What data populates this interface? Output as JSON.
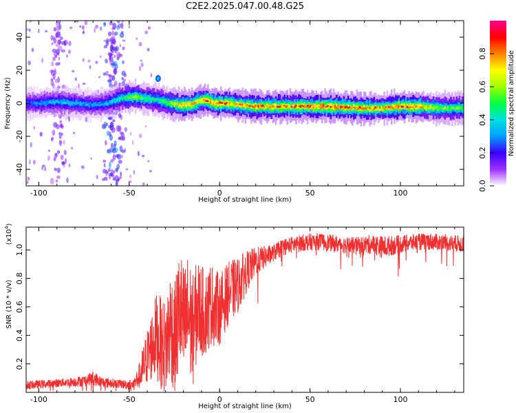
{
  "figure": {
    "title": "C2E2.2025.047.00.48.G25"
  },
  "chart_data": [
    {
      "type": "heatmap",
      "xlabel": "Height of straight line (km)",
      "ylabel": "Frequency (Hz)",
      "xlim": [
        -107,
        135
      ],
      "ylim": [
        -50,
        50
      ],
      "xticks": [
        -100,
        -50,
        0,
        50,
        100
      ],
      "yticks": [
        -40,
        -20,
        0,
        20,
        40
      ],
      "colorbar": {
        "label": "Normalized spectral amplitude",
        "range": [
          0.0,
          1.0
        ],
        "ticks": [
          0.0,
          0.2,
          0.4,
          0.6,
          0.8
        ],
        "colormap": [
          "#ffffff",
          "#9b30ff",
          "#3a00ff",
          "#00a0ff",
          "#00e0e0",
          "#00ff40",
          "#a0ff00",
          "#ffff00",
          "#ff8000",
          "#ff0000",
          "#ff0090"
        ]
      },
      "ridge": {
        "x": [
          -107,
          -100,
          -90,
          -80,
          -70,
          -62,
          -55,
          -48,
          -42,
          -35,
          -28,
          -22,
          -16,
          -12,
          -8,
          -4,
          0,
          4,
          10,
          20,
          40,
          60,
          80,
          90,
          100,
          110,
          120,
          135
        ],
        "y": [
          0,
          0,
          1,
          0,
          -1,
          0,
          3,
          4,
          3,
          2,
          0,
          -1,
          -1,
          1,
          2,
          0,
          0,
          0,
          -1,
          -2,
          -2,
          -2,
          -3,
          -3,
          -2,
          -2,
          -3,
          -3
        ],
        "amp": [
          0.25,
          0.3,
          0.35,
          0.35,
          0.3,
          0.35,
          0.45,
          0.6,
          0.5,
          0.45,
          0.6,
          0.75,
          0.8,
          0.7,
          0.85,
          0.8,
          0.85,
          0.8,
          0.75,
          0.8,
          0.8,
          0.85,
          0.8,
          0.75,
          0.85,
          0.8,
          0.6,
          0.55
        ]
      },
      "scatter_bands": [
        {
          "x": -89,
          "amp": 0.15
        },
        {
          "x": -60,
          "amp": 0.25
        },
        {
          "x": -57,
          "amp": 0.2
        }
      ]
    },
    {
      "type": "line",
      "xlabel": "Height of straight line (km)",
      "ylabel": "SNR (10 * v/v)",
      "y_multiplier": "(x10",
      "y_multiplier_exp": "4",
      "y_multiplier_close": ")",
      "xlim": [
        -107,
        135
      ],
      "ylim": [
        0.0,
        1.16
      ],
      "xticks": [
        -100,
        -50,
        0,
        50,
        100
      ],
      "yticks": [
        0.2,
        0.4,
        0.6,
        0.8,
        1.0
      ],
      "series": [
        {
          "color": "#f03030",
          "x": [
            -107,
            -95,
            -85,
            -75,
            -70,
            -65,
            -55,
            -48,
            -45,
            -40,
            -35,
            -30,
            -27,
            -25,
            -22,
            -20,
            -17,
            -15,
            -12,
            -8,
            -5,
            0,
            5,
            10,
            15,
            20,
            25,
            30,
            35,
            45,
            55,
            65,
            75,
            85,
            90,
            95,
            105,
            115,
            125,
            135
          ],
          "y": [
            0.05,
            0.06,
            0.07,
            0.08,
            0.1,
            0.07,
            0.06,
            0.05,
            0.1,
            0.25,
            0.4,
            0.3,
            0.5,
            0.35,
            0.6,
            0.45,
            0.55,
            0.42,
            0.6,
            0.55,
            0.62,
            0.58,
            0.7,
            0.75,
            0.85,
            0.92,
            0.95,
            0.98,
            1.02,
            1.05,
            1.06,
            1.04,
            1.03,
            1.04,
            1.02,
            1.03,
            1.05,
            1.06,
            1.05,
            1.04
          ],
          "spread": [
            0.03,
            0.03,
            0.03,
            0.04,
            0.05,
            0.04,
            0.03,
            0.04,
            0.08,
            0.2,
            0.3,
            0.35,
            0.4,
            0.4,
            0.45,
            0.45,
            0.45,
            0.4,
            0.35,
            0.3,
            0.3,
            0.25,
            0.22,
            0.2,
            0.15,
            0.1,
            0.08,
            0.06,
            0.06,
            0.06,
            0.06,
            0.06,
            0.06,
            0.07,
            0.08,
            0.07,
            0.06,
            0.06,
            0.06,
            0.06
          ]
        }
      ]
    }
  ]
}
